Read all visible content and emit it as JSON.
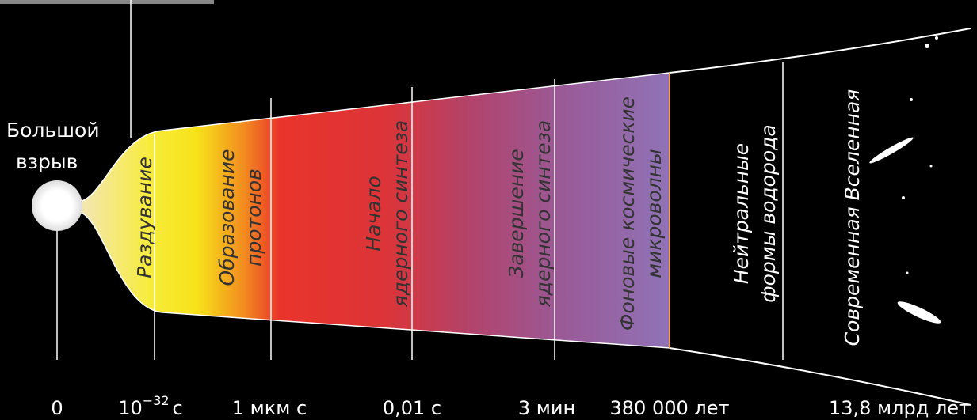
{
  "big_bang": {
    "lines": [
      "Большой",
      "взрыв"
    ]
  },
  "epochs": [
    {
      "lines": [
        "Раздувание"
      ]
    },
    {
      "lines": [
        "Образование",
        "протонов"
      ]
    },
    {
      "lines": [
        "Начало",
        "ядерного синтеза"
      ]
    },
    {
      "lines": [
        "Завершение",
        "ядерного синтеза"
      ]
    },
    {
      "lines": [
        "Фоновые космические",
        "микроволны"
      ]
    },
    {
      "lines": [
        "Нейтральные",
        "формы водорода"
      ]
    },
    {
      "lines": [
        "Современная Вселенная"
      ]
    }
  ],
  "timeline": [
    {
      "label": "0"
    },
    {
      "base": "10",
      "exponent": "−32",
      "unit": "с"
    },
    {
      "label": "1 мкм с"
    },
    {
      "label": "0,01 с"
    },
    {
      "label": "3 мин"
    },
    {
      "label": "380 000 лет"
    },
    {
      "label": "13,8 млрд лет"
    }
  ]
}
